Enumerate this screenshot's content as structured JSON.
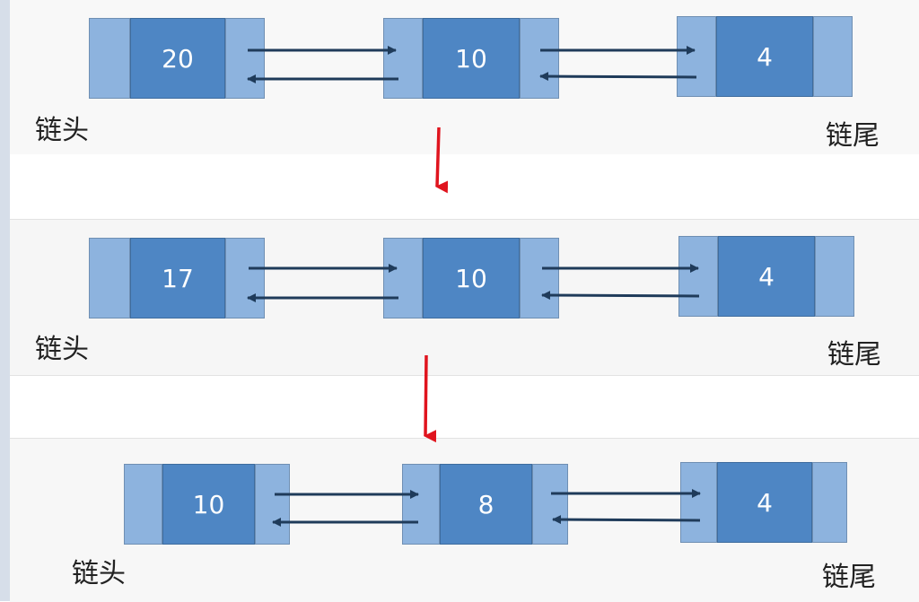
{
  "rows": [
    {
      "nodes": [
        "20",
        "10",
        "4"
      ],
      "head_label": "链头",
      "tail_label": "链尾"
    },
    {
      "nodes": [
        "17",
        "10",
        "4"
      ],
      "head_label": "链头",
      "tail_label": "链尾"
    },
    {
      "nodes": [
        "10",
        "8",
        "4"
      ],
      "head_label": "链头",
      "tail_label": "链尾"
    }
  ],
  "colors": {
    "node_side": "#8db3de",
    "node_value": "#4e86c4",
    "link_arrow": "#1f3b5a",
    "transition_arrow": "#e0141e"
  }
}
